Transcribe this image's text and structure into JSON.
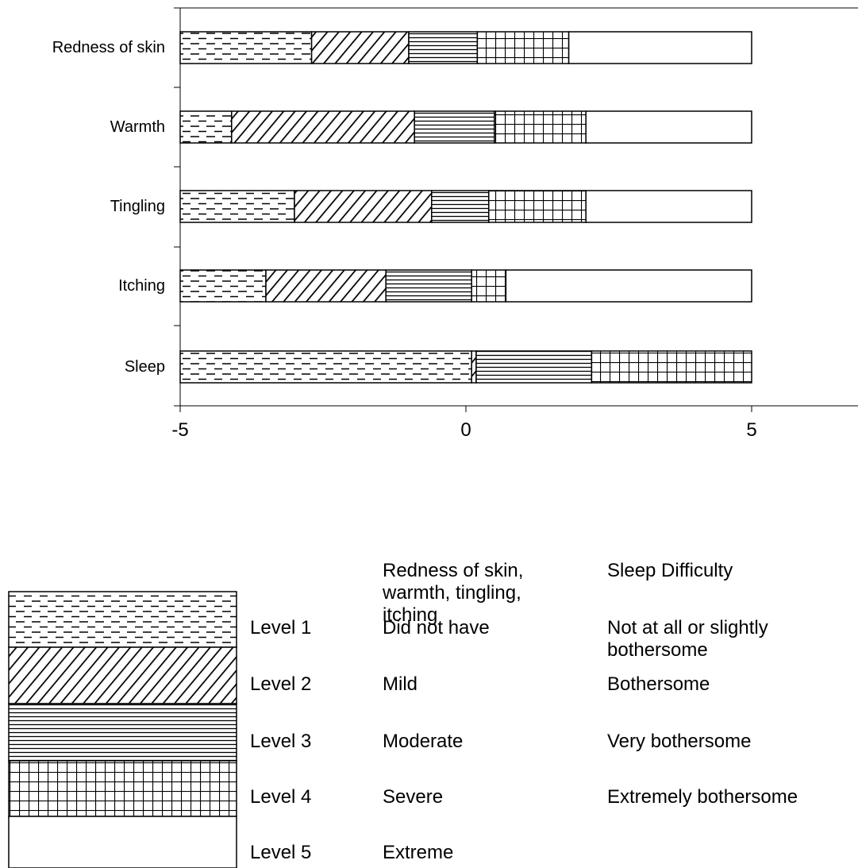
{
  "chart_data": {
    "type": "bar",
    "orientation": "horizontal",
    "stacked": true,
    "categories": [
      "Redness of skin",
      "Warmth",
      "Tingling",
      "Itching",
      "Sleep"
    ],
    "xlim": [
      -5,
      7
    ],
    "x_ticks": [
      "-5",
      "0",
      "5"
    ],
    "grid": false,
    "series": [
      {
        "name": "Level 1",
        "pattern": "dashes",
        "starts": [
          -5,
          -5,
          -5,
          -5,
          -5
        ],
        "ends": [
          -2.7,
          -4.1,
          -3.0,
          -3.5,
          0.1
        ]
      },
      {
        "name": "Level 2",
        "pattern": "diagonal",
        "starts": [
          -2.7,
          -4.1,
          -3.0,
          -3.5,
          0.1
        ],
        "ends": [
          -1.0,
          -0.9,
          -0.6,
          -1.4,
          0.18
        ]
      },
      {
        "name": "Level 3",
        "pattern": "horizontal",
        "starts": [
          -1.0,
          -0.9,
          -0.6,
          -1.4,
          0.18
        ],
        "ends": [
          0.2,
          0.5,
          0.4,
          0.1,
          2.2
        ]
      },
      {
        "name": "Level 4",
        "pattern": "grid",
        "starts": [
          0.2,
          0.5,
          0.4,
          0.1,
          2.2
        ],
        "ends": [
          1.8,
          2.1,
          2.1,
          0.7,
          5.0
        ]
      },
      {
        "name": "Level 5",
        "pattern": "blank",
        "starts": [
          1.8,
          2.1,
          2.1,
          0.7,
          5.0
        ],
        "ends": [
          5.0,
          5.0,
          5.0,
          5.0,
          5.0
        ]
      }
    ]
  },
  "legend": {
    "col_symptoms_header": "Redness of skin, warmth, tingling, itching",
    "col_sleep_header": "Sleep Difficulty",
    "rows": [
      {
        "level": "Level 1",
        "symptom": "Did not have",
        "sleep": "Not at all or slightly bothersome",
        "pattern": "dashes"
      },
      {
        "level": "Level 2",
        "symptom": "Mild",
        "sleep": "Bothersome",
        "pattern": "diagonal"
      },
      {
        "level": "Level 3",
        "symptom": "Moderate",
        "sleep": "Very bothersome",
        "pattern": "horizontal"
      },
      {
        "level": "Level 4",
        "symptom": "Severe",
        "sleep": "Extremely bothersome",
        "pattern": "grid"
      },
      {
        "level": "Level 5",
        "symptom": "Extreme",
        "sleep": "",
        "pattern": "blank"
      }
    ]
  }
}
